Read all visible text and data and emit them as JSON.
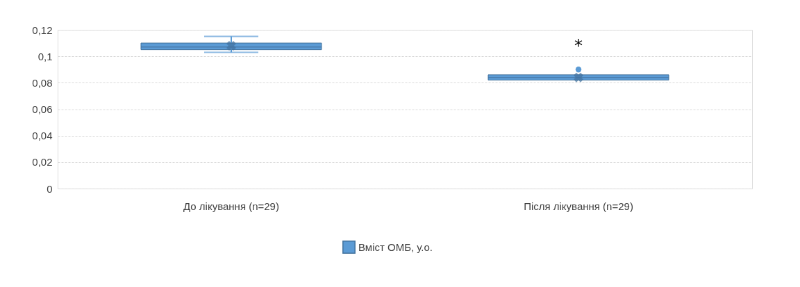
{
  "chart_data": {
    "type": "box",
    "categories": [
      "До лікування (n=29)",
      "Після лікування (n=29)"
    ],
    "series": [
      {
        "name": "Вміст ОМБ, у.о.",
        "color": "#5b9bd5",
        "boxes": [
          {
            "low": 0.103,
            "q1": 0.105,
            "median": 0.107,
            "q3": 0.11,
            "high": 0.115,
            "mean": 0.108
          },
          {
            "low": 0.082,
            "q1": 0.082,
            "median": 0.084,
            "q3": 0.086,
            "high": 0.086,
            "mean": 0.084,
            "outliers": [
              0.09
            ]
          }
        ]
      }
    ],
    "ylim": [
      0,
      0.12
    ],
    "yticks": [
      0,
      {
        "value": 0.02,
        "label": "0,02"
      },
      {
        "value": 0.04,
        "label": "0,04"
      },
      {
        "value": 0.06,
        "label": "0,06"
      },
      {
        "value": 0.08,
        "label": "0,08"
      },
      {
        "value": 0.1,
        "label": "0,1"
      },
      {
        "value": 0.12,
        "label": "0,12"
      }
    ],
    "annotations": [
      "*"
    ],
    "grid": "y",
    "legend": "bottom"
  }
}
